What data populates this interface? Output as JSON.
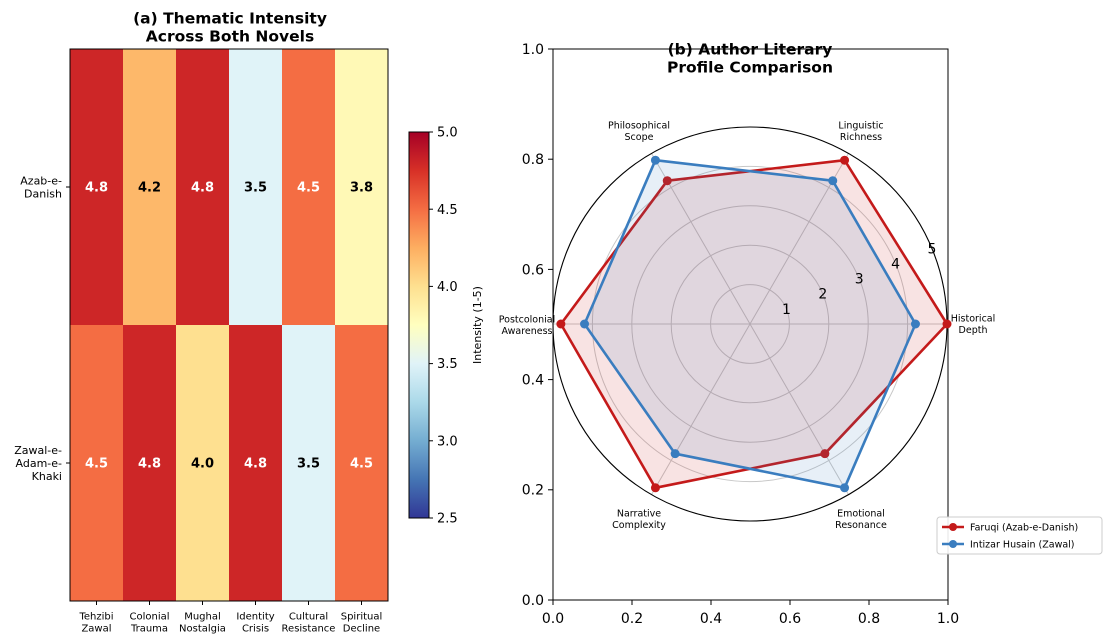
{
  "chart_data": [
    {
      "type": "heatmap",
      "title": "(a) Thematic Intensity\nAcross Both Novels",
      "rows": [
        "Azab-e-\nDanish",
        "Zawal-e-\nAdam-e-\nKhaki"
      ],
      "columns": [
        "Tehzibi\nZawal",
        "Colonial\nTrauma",
        "Mughal\nNostalgia",
        "Identity\nCrisis",
        "Cultural\nResistance",
        "Spiritual\nDecline"
      ],
      "values": [
        [
          4.8,
          4.2,
          4.8,
          3.5,
          4.5,
          3.8
        ],
        [
          4.5,
          4.8,
          4.0,
          4.8,
          3.5,
          4.5
        ]
      ],
      "value_labels": [
        [
          "4.8",
          "4.2",
          "4.8",
          "3.5",
          "4.5",
          "3.8"
        ],
        [
          "4.5",
          "4.8",
          "4.0",
          "4.8",
          "3.5",
          "4.5"
        ]
      ],
      "colorbar": {
        "label": "Intensity (1-5)",
        "range": [
          2.5,
          5.0
        ],
        "ticks": [
          2.5,
          3.0,
          3.5,
          4.0,
          4.5,
          5.0
        ],
        "tick_labels": [
          "2.5",
          "3.0",
          "3.5",
          "4.0",
          "4.5",
          "5.0"
        ],
        "colormap": "RdYlBu_r"
      }
    },
    {
      "type": "radar",
      "title": "(b) Author Literary\nProfile Comparison",
      "axes": [
        "Historical\nDepth",
        "Linguistic\nRichness",
        "Philosophical\nScope",
        "Postcolonial\nAwareness",
        "Narrative\nComplexity",
        "Emotional\nResonance"
      ],
      "rlim": [
        0,
        5
      ],
      "radial_ticks": [
        1,
        2,
        3,
        4,
        5
      ],
      "radial_tick_labels": [
        "1",
        "2",
        "3",
        "4",
        "5"
      ],
      "series": [
        {
          "name": "Faruqi (Azab-e-Danish)",
          "color": "#c41a1a",
          "values": [
            5.0,
            4.8,
            4.2,
            4.8,
            4.8,
            3.8
          ]
        },
        {
          "name": "Intizar Husain (Zawal)",
          "color": "#3a7dbf",
          "values": [
            4.2,
            4.2,
            4.8,
            4.2,
            3.8,
            4.8
          ]
        }
      ],
      "legend_position": "lower-right",
      "background_axes": {
        "xlim": [
          0.0,
          1.0
        ],
        "ylim": [
          0.0,
          1.0
        ],
        "x_ticks": [
          0.0,
          0.2,
          0.4,
          0.6,
          0.8,
          1.0
        ],
        "x_tick_labels": [
          "0.0",
          "0.2",
          "0.4",
          "0.6",
          "0.8",
          "1.0"
        ],
        "y_ticks": [
          0.0,
          0.2,
          0.4,
          0.6,
          0.8,
          1.0
        ],
        "y_tick_labels": [
          "0.0",
          "0.2",
          "0.4",
          "0.6",
          "0.8",
          "1.0"
        ]
      }
    }
  ]
}
